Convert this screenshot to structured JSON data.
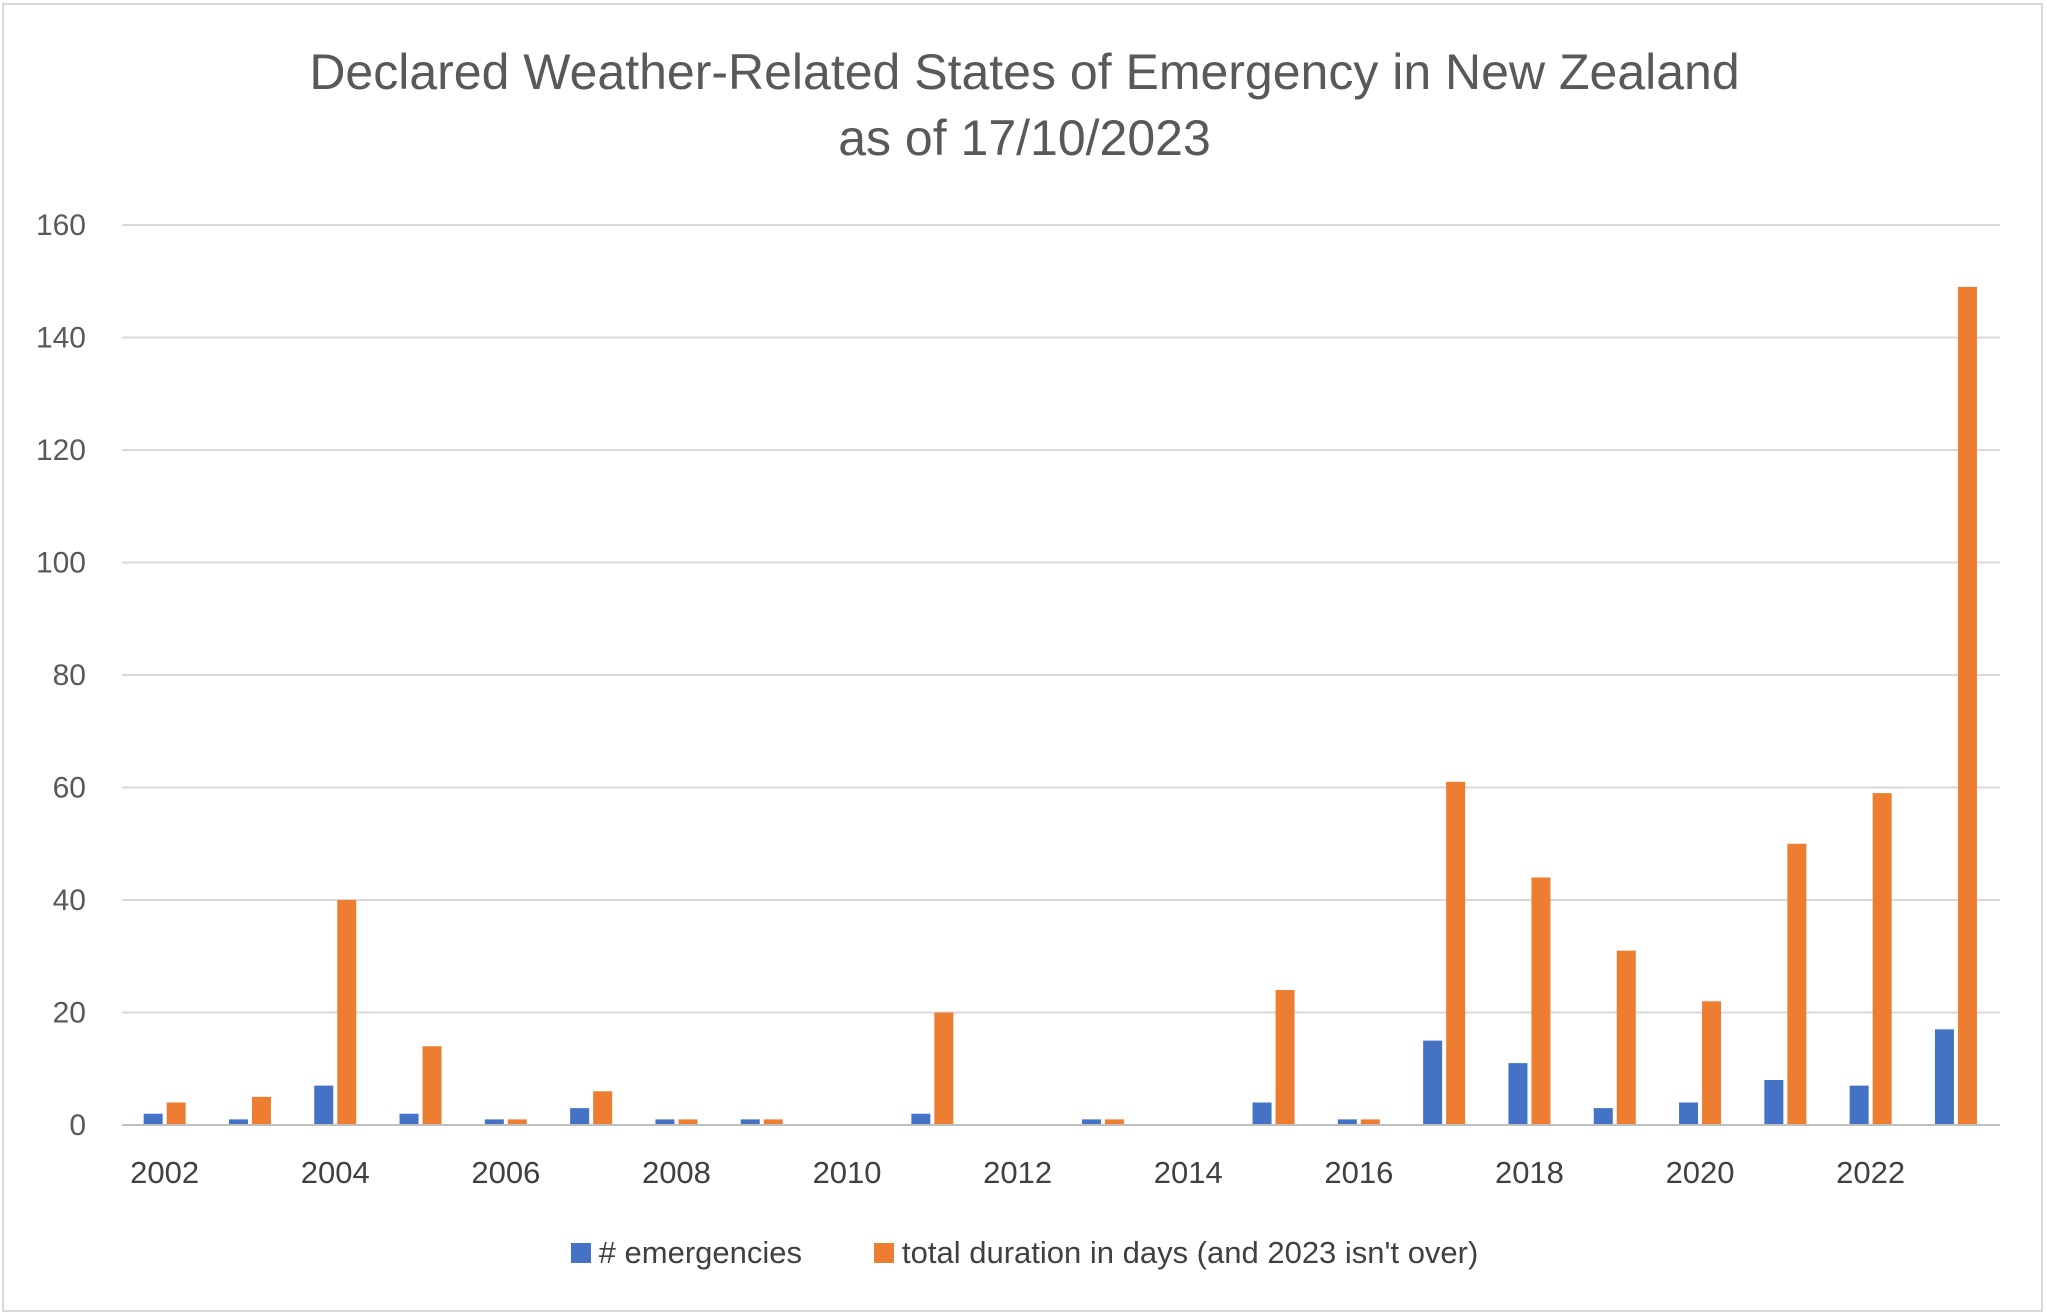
{
  "chart_data": {
    "type": "bar",
    "title_lines": [
      "Declared Weather-Related States of Emergency in New Zealand",
      "as of 17/10/2023"
    ],
    "x": [
      2002,
      2003,
      2004,
      2005,
      2006,
      2007,
      2008,
      2009,
      2010,
      2011,
      2012,
      2013,
      2014,
      2015,
      2016,
      2017,
      2018,
      2019,
      2020,
      2021,
      2022,
      2023
    ],
    "x_tick_labels": [
      "2002",
      "2004",
      "2006",
      "2008",
      "2010",
      "2012",
      "2014",
      "2016",
      "2018",
      "2020",
      "2022"
    ],
    "series": [
      {
        "name": "# emergencies",
        "color": "#4472c4",
        "values": [
          2,
          1,
          7,
          2,
          1,
          3,
          1,
          1,
          0,
          2,
          0,
          1,
          0,
          4,
          1,
          15,
          11,
          3,
          4,
          8,
          7,
          17
        ]
      },
      {
        "name": "total duration in days (and 2023 isn't over)",
        "color": "#ed7d31",
        "values": [
          4,
          5,
          40,
          14,
          1,
          6,
          1,
          1,
          0,
          20,
          0,
          1,
          0,
          24,
          1,
          61,
          44,
          31,
          22,
          50,
          59,
          149
        ]
      }
    ],
    "ylim": [
      0,
      160
    ],
    "y_ticks": [
      0,
      20,
      40,
      60,
      80,
      100,
      120,
      140,
      160
    ],
    "grid": true,
    "legend_position": "bottom",
    "xlabel": "",
    "ylabel": ""
  }
}
